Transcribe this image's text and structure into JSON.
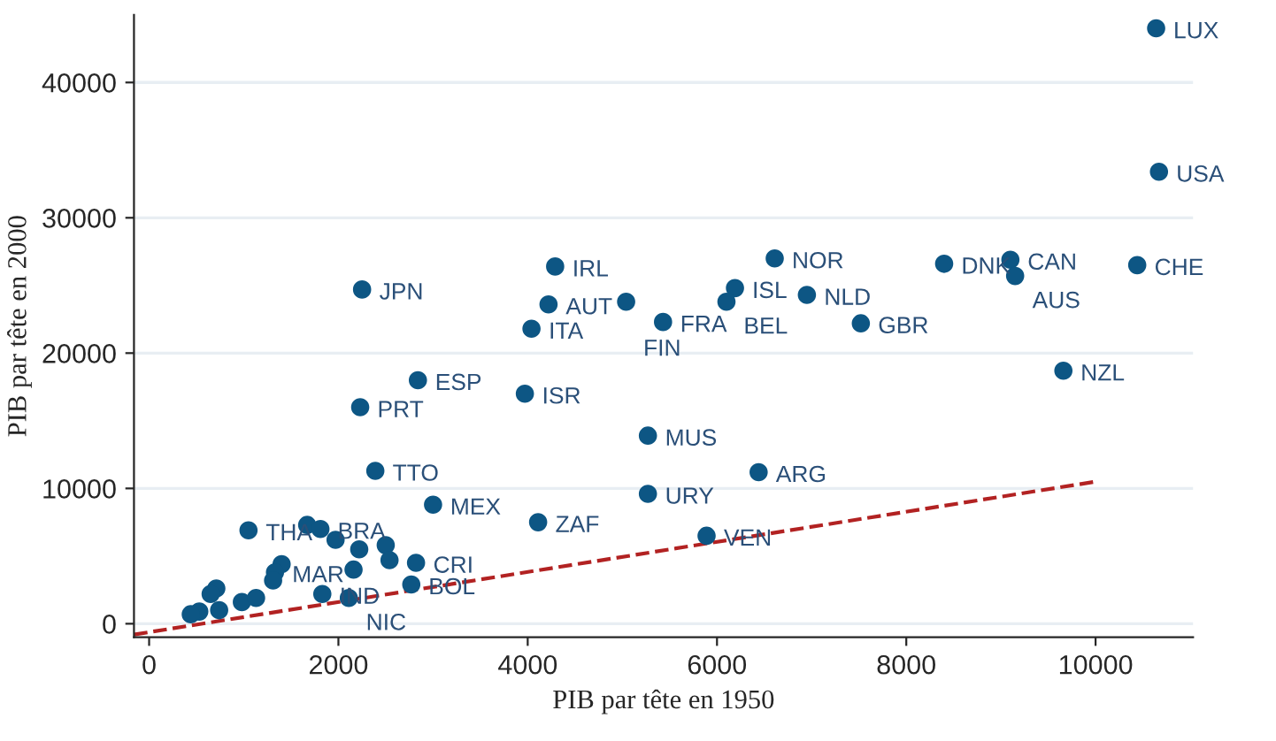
{
  "chart_data": {
    "type": "scatter",
    "xlabel": "PIB par tête en 1950",
    "ylabel": "PIB par tête en 2000",
    "xlim": [
      -160,
      11030
    ],
    "ylim": [
      -1000,
      45000
    ],
    "xticks": [
      0,
      2000,
      4000,
      6000,
      8000,
      10000
    ],
    "yticks": [
      0,
      10000,
      20000,
      30000,
      40000
    ],
    "grid": "y",
    "legend": false,
    "series": [
      {
        "color": "#0d5684",
        "marker": "circle",
        "x": [
          10640,
          10670,
          10440,
          9100,
          9150,
          8400,
          6610,
          6950,
          7520,
          9660,
          6190,
          6100,
          5430,
          5040,
          4220,
          4290,
          4040,
          2250,
          2840,
          2230,
          3970,
          5270,
          2390,
          6440,
          5270,
          4110,
          5890,
          3000,
          1050,
          1670,
          1810,
          1970,
          2220,
          2500,
          2540,
          2820,
          2160,
          1830,
          2110,
          2770,
          1400,
          1330,
          1310,
          710,
          650,
          530,
          740,
          440,
          980,
          1130
        ],
        "values": [
          44000,
          33400,
          26500,
          26900,
          25700,
          26600,
          27000,
          24300,
          22200,
          18700,
          24800,
          23800,
          22300,
          23800,
          23600,
          26400,
          21800,
          24700,
          18000,
          16000,
          17000,
          13900,
          11300,
          11200,
          9600,
          7500,
          6500,
          8800,
          6900,
          7300,
          7000,
          6200,
          5500,
          5800,
          4700,
          4500,
          4000,
          2200,
          1900,
          2900,
          4400,
          3800,
          3200,
          2600,
          2200,
          900,
          1000,
          700,
          1600,
          1900
        ]
      },
      {
        "type": "line",
        "color": "#b22222",
        "line_style": "dashed",
        "x": [
          -160,
          10000
        ],
        "values": [
          -800,
          10500
        ]
      }
    ],
    "annotations": [
      {
        "text": "LUX",
        "x": 10640,
        "y": 44000
      },
      {
        "text": "USA",
        "x": 10670,
        "y": 33400
      },
      {
        "text": "CHE",
        "x": 10440,
        "y": 26500
      },
      {
        "text": "CAN",
        "x": 9100,
        "y": 26900
      },
      {
        "text": "AUS",
        "x": 9150,
        "y": 25700
      },
      {
        "text": "DNK",
        "x": 8400,
        "y": 26600
      },
      {
        "text": "NOR",
        "x": 6610,
        "y": 27000
      },
      {
        "text": "NLD",
        "x": 6950,
        "y": 24300
      },
      {
        "text": "GBR",
        "x": 7520,
        "y": 22200
      },
      {
        "text": "NZL",
        "x": 9660,
        "y": 18700
      },
      {
        "text": "ISL",
        "x": 6190,
        "y": 24800
      },
      {
        "text": "BEL",
        "x": 6100,
        "y": 23800
      },
      {
        "text": "FRA",
        "x": 5430,
        "y": 22300
      },
      {
        "text": "FIN",
        "x": 5040,
        "y": 23800
      },
      {
        "text": "AUT",
        "x": 4220,
        "y": 23600
      },
      {
        "text": "IRL",
        "x": 4290,
        "y": 26400
      },
      {
        "text": "ITA",
        "x": 4040,
        "y": 21800
      },
      {
        "text": "JPN",
        "x": 2250,
        "y": 24700
      },
      {
        "text": "ESP",
        "x": 2840,
        "y": 18000
      },
      {
        "text": "PRT",
        "x": 2230,
        "y": 16000
      },
      {
        "text": "ISR",
        "x": 3970,
        "y": 17000
      },
      {
        "text": "MUS",
        "x": 5270,
        "y": 13900
      },
      {
        "text": "TTO",
        "x": 2390,
        "y": 11300
      },
      {
        "text": "ARG",
        "x": 6440,
        "y": 11200
      },
      {
        "text": "URY",
        "x": 5270,
        "y": 9600
      },
      {
        "text": "ZAF",
        "x": 4110,
        "y": 7500
      },
      {
        "text": "VEN",
        "x": 5890,
        "y": 6500
      },
      {
        "text": "MEX",
        "x": 3000,
        "y": 8800
      },
      {
        "text": "THA",
        "x": 1050,
        "y": 6900
      },
      {
        "text": "BRA",
        "x": 1810,
        "y": 7000
      },
      {
        "text": "CRI",
        "x": 2820,
        "y": 4500
      },
      {
        "text": "IND",
        "x": 1830,
        "y": 2200
      },
      {
        "text": "NIC",
        "x": 2110,
        "y": 1900
      },
      {
        "text": "BOL",
        "x": 2770,
        "y": 2900
      },
      {
        "text": "MAR",
        "x": 1330,
        "y": 3800
      }
    ]
  }
}
